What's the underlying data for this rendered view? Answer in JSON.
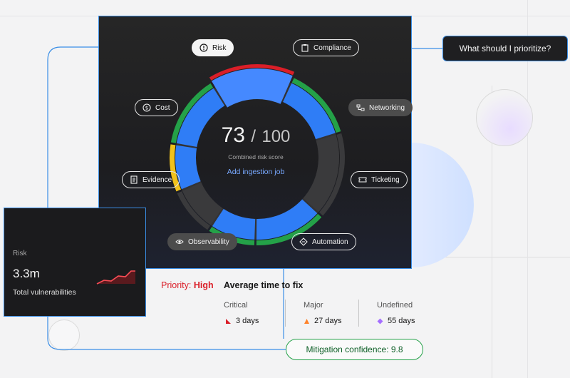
{
  "callout": {
    "text": "What should I prioritize?"
  },
  "dial": {
    "score": "73",
    "separator": "/",
    "total": "100",
    "label": "Combined risk score",
    "link": "Add ingestion job",
    "segments": [
      {
        "name": "risk",
        "value": 0.17,
        "color": "#4589ff",
        "accent": "#da1e28"
      },
      {
        "name": "compliance",
        "value": 0.15,
        "color": "#2f7df6",
        "accent": "#24a148"
      },
      {
        "name": "networking",
        "value": 0.18,
        "color": "#3a3a3c",
        "accent": "#3a3a3c"
      },
      {
        "name": "ticketing",
        "value": 0.15,
        "color": "#2f7df6",
        "accent": "#24a148"
      },
      {
        "name": "automation",
        "value": 0.1,
        "color": "#2f7df6",
        "accent": "#24a148"
      },
      {
        "name": "observability",
        "value": 0.1,
        "color": "#3a3a3c",
        "accent": "#3a3a3c"
      },
      {
        "name": "evidence",
        "value": 0.1,
        "color": "#2f7df6",
        "accent": "#f1c21b"
      },
      {
        "name": "cost",
        "value": 0.15,
        "color": "#2f7df6",
        "accent": "#24a148"
      }
    ]
  },
  "labels": {
    "risk": "Risk",
    "compliance": "Compliance",
    "cost": "Cost",
    "networking": "Networking",
    "evidence": "Evidence",
    "ticketing": "Ticketing",
    "observability": "Observability",
    "automation": "Automation"
  },
  "risk_card": {
    "title": "Risk",
    "value": "3.3m",
    "subtitle": "Total vulnerabilities"
  },
  "priority": {
    "label": "Priority:",
    "level": "High",
    "heading": "Average time to fix",
    "columns": [
      {
        "header": "Critical",
        "value": "3 days",
        "color": "#da1e28"
      },
      {
        "header": "Major",
        "value": "27 days",
        "color": "#ff832b"
      },
      {
        "header": "Undefined",
        "value": "55 days",
        "color": "#a56eff"
      }
    ]
  },
  "confidence": {
    "text": "Mitigation confidence: 9.8"
  }
}
